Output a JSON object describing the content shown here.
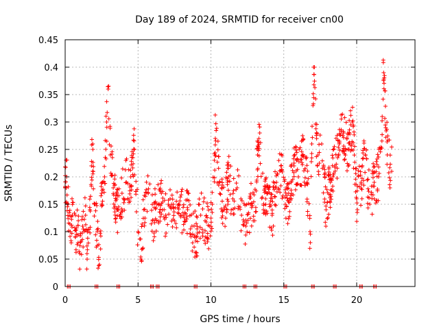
{
  "chart_data": {
    "type": "scatter",
    "title": "Day 189 of 2024, SRMTID for receiver cn00",
    "xlabel": "GPS time / hours",
    "ylabel": "SRMTID / TECUs",
    "xlim": [
      0,
      24
    ],
    "ylim": [
      0,
      0.45
    ],
    "xticks": [
      0,
      5,
      10,
      15,
      20
    ],
    "yticks": [
      0,
      0.05,
      0.1,
      0.15,
      0.2,
      0.25,
      0.3,
      0.35,
      0.4,
      0.45
    ],
    "xtick_labels": [
      "0",
      "5",
      "10",
      "15",
      "20"
    ],
    "ytick_labels": [
      "0",
      "0.05",
      "0.1",
      "0.15",
      "0.2",
      "0.25",
      "0.3",
      "0.35",
      "0.4",
      "0.45"
    ],
    "grid": true,
    "marker": "+",
    "color": "#ff0000",
    "series_summary": [
      {
        "x": 0.0,
        "y": 0.18
      },
      {
        "x": 0.1,
        "y": 0.2
      },
      {
        "x": 0.2,
        "y": 0.15
      },
      {
        "x": 0.35,
        "y": 0.1
      },
      {
        "x": 0.5,
        "y": 0.13
      },
      {
        "x": 0.7,
        "y": 0.09
      },
      {
        "x": 0.9,
        "y": 0.12
      },
      {
        "x": 1.0,
        "y": 0.06
      },
      {
        "x": 1.2,
        "y": 0.11
      },
      {
        "x": 1.4,
        "y": 0.13
      },
      {
        "x": 1.5,
        "y": 0.06
      },
      {
        "x": 1.7,
        "y": 0.14
      },
      {
        "x": 1.8,
        "y": 0.22
      },
      {
        "x": 1.9,
        "y": 0.25
      },
      {
        "x": 2.0,
        "y": 0.15
      },
      {
        "x": 2.2,
        "y": 0.1
      },
      {
        "x": 2.35,
        "y": 0.04
      },
      {
        "x": 2.5,
        "y": 0.17
      },
      {
        "x": 2.7,
        "y": 0.2
      },
      {
        "x": 2.85,
        "y": 0.3
      },
      {
        "x": 2.95,
        "y": 0.36
      },
      {
        "x": 3.1,
        "y": 0.24
      },
      {
        "x": 3.3,
        "y": 0.18
      },
      {
        "x": 3.6,
        "y": 0.14
      },
      {
        "x": 3.9,
        "y": 0.17
      },
      {
        "x": 4.2,
        "y": 0.19
      },
      {
        "x": 4.5,
        "y": 0.2
      },
      {
        "x": 4.75,
        "y": 0.25
      },
      {
        "x": 5.0,
        "y": 0.1
      },
      {
        "x": 5.2,
        "y": 0.05
      },
      {
        "x": 5.4,
        "y": 0.14
      },
      {
        "x": 5.7,
        "y": 0.17
      },
      {
        "x": 6.0,
        "y": 0.12
      },
      {
        "x": 6.3,
        "y": 0.15
      },
      {
        "x": 6.6,
        "y": 0.17
      },
      {
        "x": 6.9,
        "y": 0.13
      },
      {
        "x": 7.2,
        "y": 0.16
      },
      {
        "x": 7.5,
        "y": 0.12
      },
      {
        "x": 7.8,
        "y": 0.15
      },
      {
        "x": 8.1,
        "y": 0.13
      },
      {
        "x": 8.4,
        "y": 0.14
      },
      {
        "x": 8.7,
        "y": 0.11
      },
      {
        "x": 9.0,
        "y": 0.09
      },
      {
        "x": 9.3,
        "y": 0.13
      },
      {
        "x": 9.6,
        "y": 0.12
      },
      {
        "x": 9.9,
        "y": 0.11
      },
      {
        "x": 10.1,
        "y": 0.15
      },
      {
        "x": 10.3,
        "y": 0.27
      },
      {
        "x": 10.6,
        "y": 0.19
      },
      {
        "x": 10.9,
        "y": 0.14
      },
      {
        "x": 11.2,
        "y": 0.2
      },
      {
        "x": 11.5,
        "y": 0.16
      },
      {
        "x": 11.8,
        "y": 0.18
      },
      {
        "x": 12.1,
        "y": 0.13
      },
      {
        "x": 12.4,
        "y": 0.11
      },
      {
        "x": 12.7,
        "y": 0.15
      },
      {
        "x": 13.0,
        "y": 0.12
      },
      {
        "x": 13.2,
        "y": 0.24
      },
      {
        "x": 13.35,
        "y": 0.28
      },
      {
        "x": 13.6,
        "y": 0.14
      },
      {
        "x": 13.9,
        "y": 0.17
      },
      {
        "x": 14.2,
        "y": 0.13
      },
      {
        "x": 14.5,
        "y": 0.19
      },
      {
        "x": 14.8,
        "y": 0.22
      },
      {
        "x": 15.1,
        "y": 0.15
      },
      {
        "x": 15.4,
        "y": 0.16
      },
      {
        "x": 15.7,
        "y": 0.22
      },
      {
        "x": 16.0,
        "y": 0.2
      },
      {
        "x": 16.3,
        "y": 0.24
      },
      {
        "x": 16.6,
        "y": 0.19
      },
      {
        "x": 16.8,
        "y": 0.1
      },
      {
        "x": 17.0,
        "y": 0.33
      },
      {
        "x": 17.1,
        "y": 0.4
      },
      {
        "x": 17.3,
        "y": 0.22
      },
      {
        "x": 17.6,
        "y": 0.26
      },
      {
        "x": 17.9,
        "y": 0.14
      },
      {
        "x": 18.2,
        "y": 0.19
      },
      {
        "x": 18.5,
        "y": 0.22
      },
      {
        "x": 18.8,
        "y": 0.26
      },
      {
        "x": 19.1,
        "y": 0.28
      },
      {
        "x": 19.4,
        "y": 0.25
      },
      {
        "x": 19.7,
        "y": 0.3
      },
      {
        "x": 20.0,
        "y": 0.16
      },
      {
        "x": 20.3,
        "y": 0.19
      },
      {
        "x": 20.6,
        "y": 0.24
      },
      {
        "x": 20.9,
        "y": 0.15
      },
      {
        "x": 21.2,
        "y": 0.19
      },
      {
        "x": 21.5,
        "y": 0.2
      },
      {
        "x": 21.75,
        "y": 0.31
      },
      {
        "x": 21.85,
        "y": 0.39
      },
      {
        "x": 22.1,
        "y": 0.24
      },
      {
        "x": 22.4,
        "y": 0.21
      }
    ],
    "zero_markers_x": [
      0.25,
      2.15,
      3.65,
      5.95,
      6.35,
      8.95,
      12.3,
      13.05,
      15.1,
      17.0,
      18.5,
      20.3,
      21.25
    ]
  }
}
